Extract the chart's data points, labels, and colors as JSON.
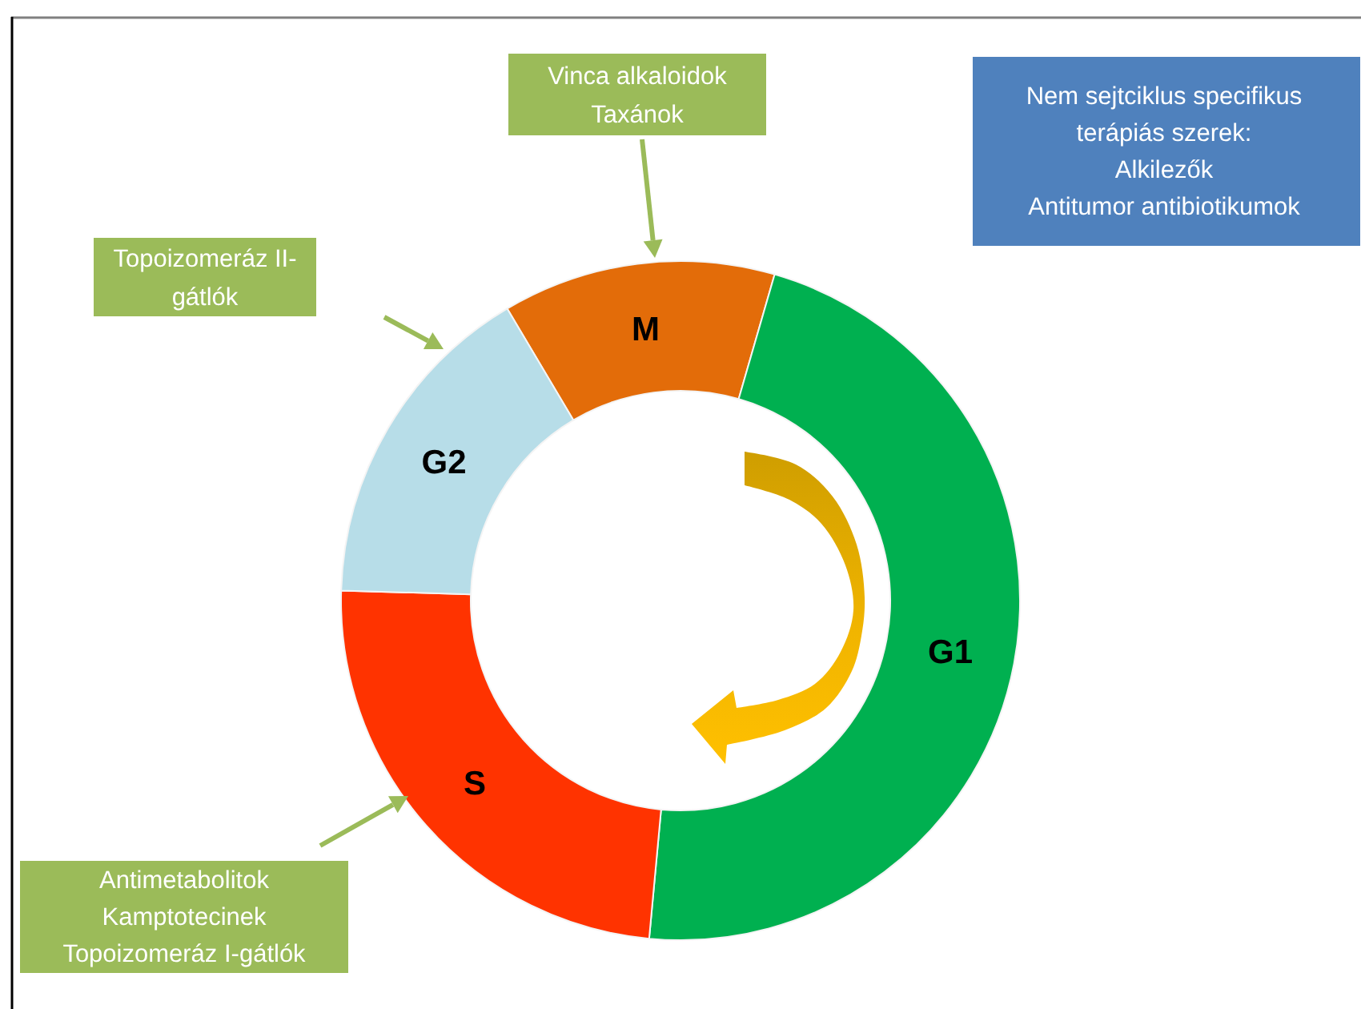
{
  "chart_data": {
    "type": "donut",
    "categories": [
      "M",
      "G1",
      "S",
      "G2"
    ],
    "values": [
      13,
      47,
      24,
      16
    ],
    "colors": [
      "#e36c09",
      "#00b050",
      "#ff3300",
      "#b7dde8"
    ],
    "annotations": [
      "Vinca alkaloidok\nTaxánok",
      "Topoizomeráz II-\ngátlók",
      "Antimetabolitok\nKamptotecinek\nTopoizomeráz I-gátlók",
      "Nem sejtciklus specifikus\nterápiás szerek:\nAlkilezők\nAntitumor antibiotikumok"
    ]
  }
}
